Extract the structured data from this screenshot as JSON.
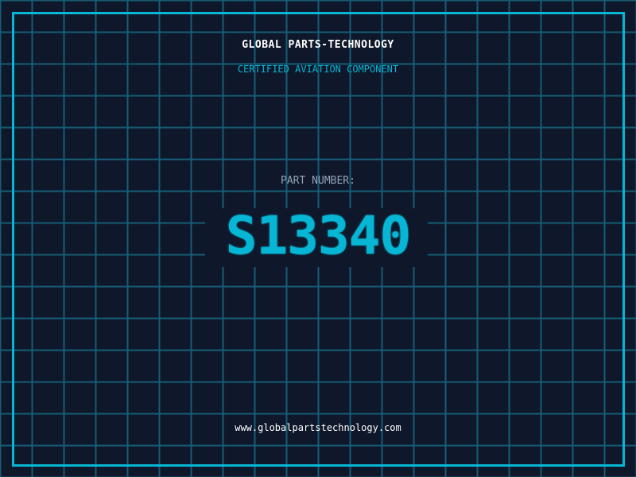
{
  "header": {
    "title": "GLOBAL PARTS-TECHNOLOGY",
    "subtitle": "CERTIFIED AVIATION COMPONENT"
  },
  "part": {
    "label": "PART NUMBER:",
    "number": "S13340"
  },
  "footer": {
    "url": "www.globalpartstechnology.com"
  },
  "colors": {
    "background": "#0f172a",
    "accent": "#06b6d4",
    "grid": "#155e75",
    "label": "#94a3b8"
  }
}
